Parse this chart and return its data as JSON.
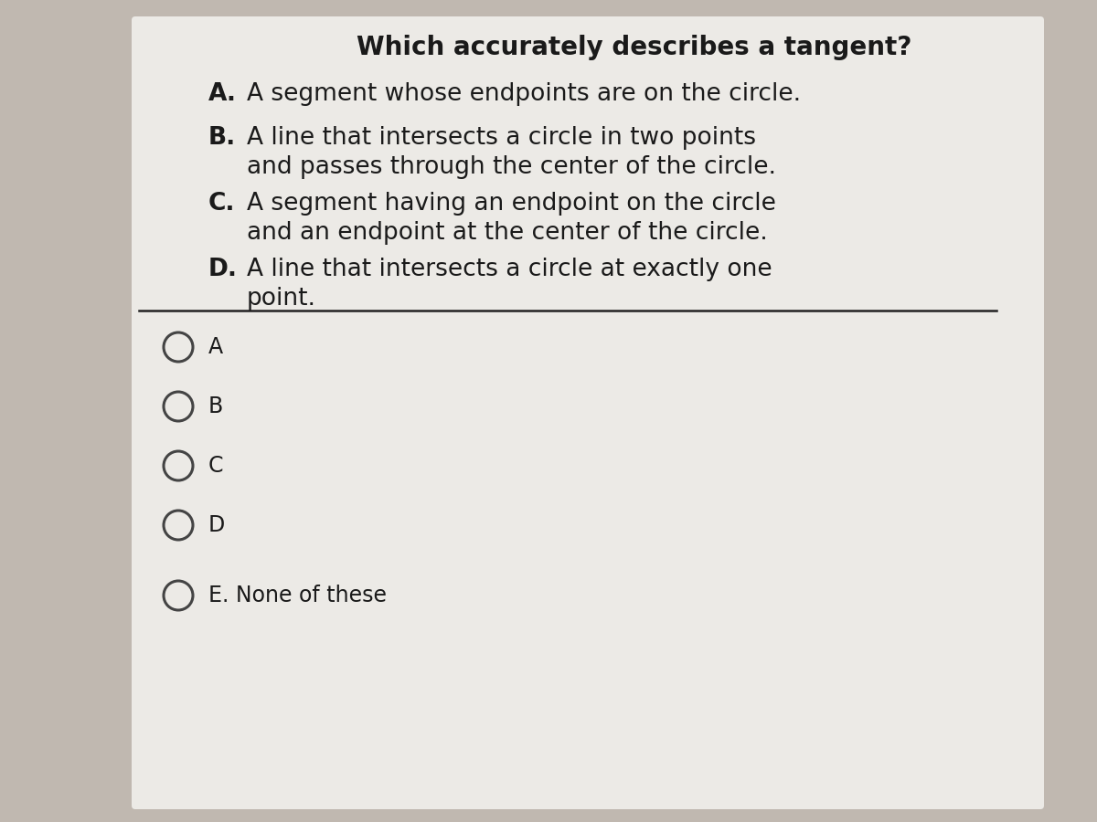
{
  "title": "Which accurately describes a tangent?",
  "option_A_letter": "A.",
  "option_A_line1": "A segment whose endpoints are on the circle.",
  "option_B_letter": "B.",
  "option_B_line1": "A line that intersects a circle in two points",
  "option_B_line2": "and passes through the center of the circle.",
  "option_C_letter": "C.",
  "option_C_line1": "A segment having an endpoint on the circle",
  "option_C_line2": "and an endpoint at the center of the circle.",
  "option_D_letter": "D.",
  "option_D_line1": "A line that intersects a circle at exactly one",
  "option_D_line2": "point.",
  "choices": [
    "A",
    "B",
    "C",
    "D",
    "E. None of these"
  ],
  "bg_color_outer": "#c0b8b0",
  "bg_color_inner": "#eceae6",
  "text_color": "#1a1a1a",
  "circle_color": "#444444",
  "line_color": "#222222",
  "title_fontsize": 20,
  "option_fontsize": 19,
  "choice_fontsize": 17
}
